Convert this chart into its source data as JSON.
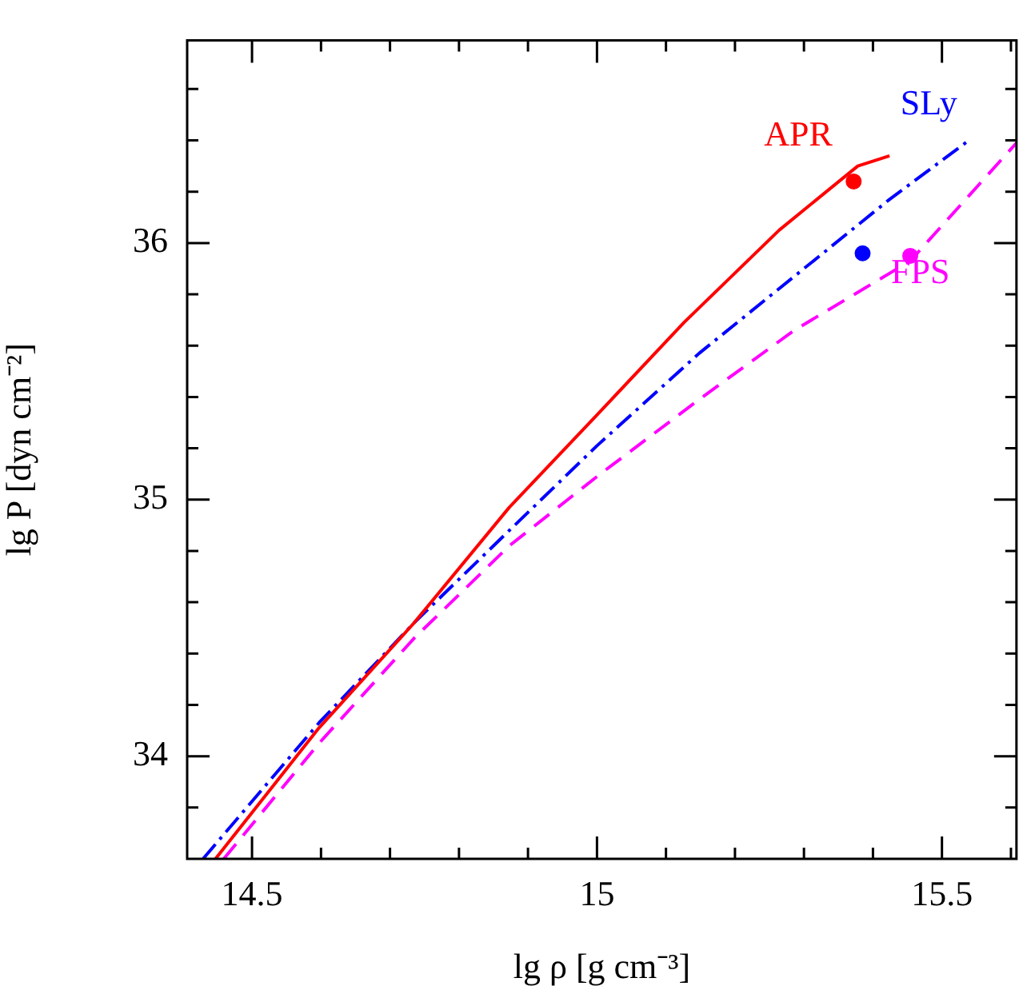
{
  "chart_data": {
    "type": "line",
    "xlabel": "lg ρ [g cm⁻³]",
    "ylabel": "lg P [dyn cm⁻²]",
    "xlim": [
      14.406,
      15.608
    ],
    "ylim": [
      33.6,
      36.79
    ],
    "xticks": [
      {
        "value": 14.5,
        "label": "14.5"
      },
      {
        "value": 14.6,
        "label": null
      },
      {
        "value": 14.7,
        "label": null
      },
      {
        "value": 14.8,
        "label": null
      },
      {
        "value": 14.9,
        "label": null
      },
      {
        "value": 15,
        "label": "15"
      },
      {
        "value": 15.1,
        "label": null
      },
      {
        "value": 15.2,
        "label": null
      },
      {
        "value": 15.3,
        "label": null
      },
      {
        "value": 15.4,
        "label": null
      },
      {
        "value": 15.5,
        "label": "15.5"
      },
      {
        "value": 15.6,
        "label": null
      }
    ],
    "yticks": [
      {
        "value": 33.8,
        "label": null
      },
      {
        "value": 34,
        "label": "34"
      },
      {
        "value": 34.2,
        "label": null
      },
      {
        "value": 34.4,
        "label": null
      },
      {
        "value": 34.6,
        "label": null
      },
      {
        "value": 34.8,
        "label": null
      },
      {
        "value": 35,
        "label": "35"
      },
      {
        "value": 35.2,
        "label": null
      },
      {
        "value": 35.4,
        "label": null
      },
      {
        "value": 35.6,
        "label": null
      },
      {
        "value": 35.8,
        "label": null
      },
      {
        "value": 36,
        "label": "36"
      },
      {
        "value": 36.2,
        "label": null
      },
      {
        "value": 36.4,
        "label": null
      },
      {
        "value": 36.6,
        "label": null
      }
    ],
    "grid": false,
    "legend": false,
    "marker": "none",
    "series": [
      {
        "name": "APR",
        "color": "#ff0000",
        "line_style": "solid",
        "x": [
          14.447,
          14.597,
          14.735,
          14.873,
          15.0,
          15.126,
          15.264,
          15.378,
          15.424
        ],
        "values": [
          33.6,
          34.11,
          34.52,
          34.97,
          35.33,
          35.69,
          36.05,
          36.3,
          36.34
        ]
      },
      {
        "name": "SLy",
        "color": "#0000ff",
        "line_style": "dashdot",
        "x": [
          14.429,
          14.597,
          14.735,
          14.873,
          15.0,
          15.148,
          15.286,
          15.424,
          15.539
        ],
        "values": [
          33.6,
          34.13,
          34.52,
          34.88,
          35.21,
          35.57,
          35.87,
          36.17,
          36.4
        ]
      },
      {
        "name": "FPS",
        "color": "#ff00ff",
        "line_style": "dashed",
        "x": [
          14.459,
          14.597,
          14.735,
          14.873,
          15.0,
          15.148,
          15.286,
          15.454,
          15.608
        ],
        "values": [
          33.6,
          34.05,
          34.46,
          34.82,
          35.09,
          35.39,
          35.66,
          35.93,
          36.39
        ]
      },
      {
        "type": "scatter",
        "color": "#ff0000",
        "marker": "circle",
        "x": [
          15.372
        ],
        "values": [
          36.24
        ]
      },
      {
        "type": "scatter",
        "color": "#0000ff",
        "marker": "circle",
        "x": [
          15.385
        ],
        "values": [
          35.96
        ]
      },
      {
        "type": "scatter",
        "color": "#ff00ff",
        "marker": "circle",
        "x": [
          15.454
        ],
        "values": [
          35.95
        ]
      }
    ]
  }
}
